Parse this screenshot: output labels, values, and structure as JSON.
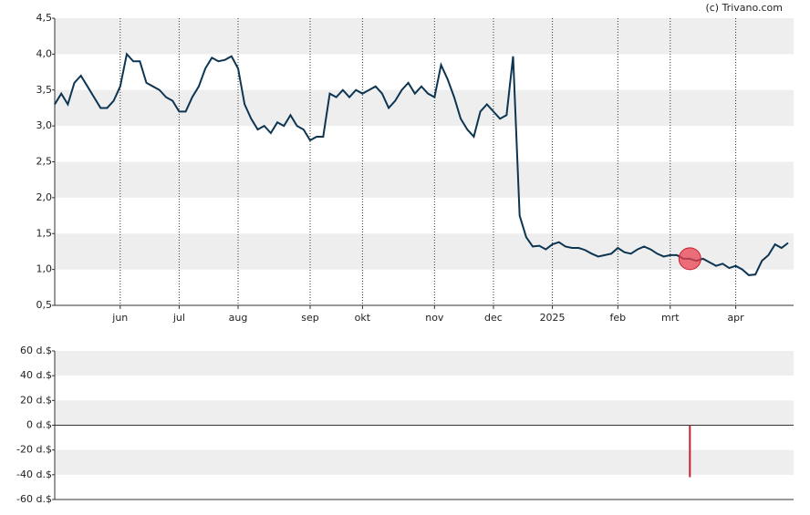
{
  "credit": "(c) Trivano.com",
  "chart_data": [
    {
      "type": "line",
      "categories": [
        null,
        null,
        null,
        null,
        null,
        null,
        null,
        null,
        null,
        null,
        "jun",
        null,
        null,
        null,
        null,
        null,
        null,
        null,
        null,
        "jul",
        null,
        null,
        null,
        null,
        null,
        null,
        null,
        null,
        "aug",
        null,
        null,
        null,
        null,
        null,
        null,
        null,
        null,
        null,
        null,
        "sep",
        null,
        null,
        null,
        null,
        null,
        null,
        null,
        "okt",
        null,
        null,
        null,
        null,
        null,
        null,
        null,
        null,
        null,
        null,
        "nov",
        null,
        null,
        null,
        null,
        null,
        null,
        null,
        null,
        "dec",
        null,
        null,
        null,
        null,
        null,
        null,
        null,
        null,
        "2025",
        null,
        null,
        null,
        null,
        null,
        null,
        null,
        null,
        null,
        "feb",
        null,
        null,
        null,
        null,
        null,
        null,
        null,
        "mrt",
        null,
        null,
        null,
        null,
        null,
        null,
        null,
        null,
        null,
        "apr",
        null,
        null,
        null,
        null,
        null,
        null,
        null,
        null
      ],
      "series": [
        {
          "color": "#0d3552",
          "values": [
            3.3,
            3.45,
            3.3,
            3.6,
            3.7,
            3.55,
            3.4,
            3.25,
            3.25,
            3.35,
            3.55,
            4.0,
            3.9,
            3.9,
            3.6,
            3.55,
            3.5,
            3.4,
            3.35,
            3.2,
            3.2,
            3.4,
            3.55,
            3.8,
            3.95,
            3.9,
            3.92,
            3.97,
            3.8,
            3.3,
            3.1,
            2.95,
            3.0,
            2.9,
            3.05,
            3.0,
            3.15,
            3.0,
            2.95,
            2.8,
            2.85,
            2.85,
            3.45,
            3.4,
            3.5,
            3.4,
            3.5,
            3.45,
            3.5,
            3.55,
            3.45,
            3.25,
            3.35,
            3.5,
            3.6,
            3.45,
            3.55,
            3.45,
            3.4,
            3.85,
            3.65,
            3.4,
            3.1,
            2.95,
            2.85,
            3.2,
            3.3,
            3.2,
            3.1,
            3.15,
            3.97,
            1.75,
            1.45,
            1.32,
            1.33,
            1.28,
            1.35,
            1.38,
            1.32,
            1.3,
            1.3,
            1.27,
            1.22,
            1.18,
            1.2,
            1.22,
            1.3,
            1.24,
            1.22,
            1.28,
            1.32,
            1.28,
            1.22,
            1.18,
            1.2,
            1.2,
            1.15,
            1.15,
            1.12,
            1.15,
            1.1,
            1.05,
            1.08,
            1.02,
            1.05,
            1.0,
            0.92,
            0.93,
            1.12,
            1.2,
            1.35,
            1.3,
            1.37
          ]
        },
        {
          "color": "#e8414f",
          "values": [
            null,
            null,
            null,
            null,
            null,
            null,
            null,
            null,
            null,
            null,
            null,
            null,
            null,
            null,
            null,
            null,
            null,
            null,
            null,
            null,
            null,
            null,
            null,
            null,
            null,
            null,
            null,
            null,
            null,
            null,
            null,
            null,
            null,
            null,
            null,
            null,
            null,
            null,
            null,
            null,
            null,
            null,
            null,
            null,
            null,
            null,
            null,
            null,
            null,
            null,
            null,
            null,
            null,
            null,
            null,
            null,
            null,
            null,
            null,
            null,
            null,
            null,
            null,
            null,
            null,
            null,
            null,
            null,
            null,
            null,
            null,
            null,
            null,
            null,
            null,
            null,
            null,
            null,
            null,
            null,
            null,
            null,
            null,
            null,
            null,
            null,
            null,
            null,
            null,
            null,
            null,
            null,
            null,
            null,
            null,
            null,
            null,
            1.15,
            null,
            null,
            null,
            null,
            null,
            null,
            null,
            null,
            null,
            null,
            null,
            null,
            null,
            null,
            null
          ]
        }
      ],
      "ylim": [
        0.5,
        4.5
      ],
      "yticks": [
        {
          "value": 0.5,
          "label": "0,5"
        },
        {
          "value": 1,
          "label": "1,0"
        },
        {
          "value": 1.5,
          "label": "1,5"
        },
        {
          "value": 2,
          "label": "2,0"
        },
        {
          "value": 2.5,
          "label": "2,5"
        },
        {
          "value": 3,
          "label": "3,0"
        },
        {
          "value": 3.5,
          "label": "3,5"
        },
        {
          "value": 4,
          "label": "4,0"
        },
        {
          "value": 4.5,
          "label": "4,5"
        }
      ],
      "grid": true
    },
    {
      "type": "bar",
      "color": "#c8202f",
      "values": [
        null,
        null,
        null,
        null,
        null,
        null,
        null,
        null,
        null,
        null,
        null,
        null,
        null,
        null,
        null,
        null,
        null,
        null,
        null,
        null,
        null,
        null,
        null,
        null,
        null,
        null,
        null,
        null,
        null,
        null,
        null,
        null,
        null,
        null,
        null,
        null,
        null,
        null,
        null,
        null,
        null,
        null,
        null,
        null,
        null,
        null,
        null,
        null,
        null,
        null,
        null,
        null,
        null,
        null,
        null,
        null,
        null,
        null,
        null,
        null,
        null,
        null,
        null,
        null,
        null,
        null,
        null,
        null,
        null,
        null,
        null,
        null,
        null,
        null,
        null,
        null,
        null,
        null,
        null,
        null,
        null,
        null,
        null,
        null,
        null,
        null,
        null,
        null,
        null,
        null,
        null,
        null,
        null,
        null,
        null,
        null,
        null,
        -42,
        null,
        null,
        null,
        null,
        null,
        null,
        null,
        null,
        null,
        null,
        null,
        null,
        null,
        null,
        null
      ],
      "ylim": [
        -60,
        60
      ],
      "yticks": [
        {
          "value": -60,
          "label": "-60 d.$"
        },
        {
          "value": -40,
          "label": "-40 d.$"
        },
        {
          "value": -20,
          "label": "-20 d.$"
        },
        {
          "value": 0,
          "label": "0 d.$"
        },
        {
          "value": 20,
          "label": "20 d.$"
        },
        {
          "value": 40,
          "label": "40 d.$"
        },
        {
          "value": 60,
          "label": "60 d.$"
        }
      ],
      "grid": true
    }
  ]
}
